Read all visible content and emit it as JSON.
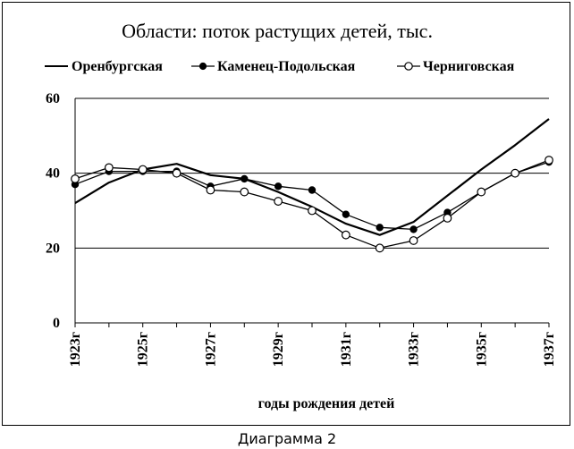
{
  "chart_data": {
    "type": "line",
    "title": "Области: поток растущих детей, тыс.",
    "xlabel": "годы рождения детей",
    "ylabel": "",
    "ylim": [
      0,
      60
    ],
    "yticks": [
      0,
      20,
      40,
      60
    ],
    "x": [
      1923,
      1924,
      1925,
      1926,
      1927,
      1928,
      1929,
      1930,
      1931,
      1932,
      1933,
      1934,
      1935,
      1936,
      1937
    ],
    "tick_labels": [
      {
        "x": 1923,
        "label": "1923г"
      },
      {
        "x": 1925,
        "label": "1925г"
      },
      {
        "x": 1927,
        "label": "1927г"
      },
      {
        "x": 1929,
        "label": "1929г"
      },
      {
        "x": 1931,
        "label": "1931г"
      },
      {
        "x": 1933,
        "label": "1933г"
      },
      {
        "x": 1935,
        "label": "1935г"
      },
      {
        "x": 1937,
        "label": "1937г"
      }
    ],
    "grid": "horizontal",
    "legend_position": "top",
    "series": [
      {
        "name": "Оренбургская",
        "marker": "none",
        "color": "#000000",
        "values": [
          32,
          37.5,
          41,
          42.5,
          39.5,
          38.5,
          35,
          31,
          26.5,
          23.5,
          27,
          34,
          41,
          47.5,
          54.5
        ]
      },
      {
        "name": "Каменец-Подольская",
        "marker": "filled",
        "color": "#000000",
        "values": [
          37,
          40.5,
          40.5,
          40.5,
          36.5,
          38.5,
          36.5,
          35.5,
          29,
          25.5,
          25,
          29.5,
          35,
          40,
          43
        ]
      },
      {
        "name": "Черниговская",
        "marker": "open",
        "color": "#000000",
        "values": [
          38.5,
          41.5,
          41,
          40,
          35.5,
          35,
          32.5,
          30,
          23.5,
          20,
          22,
          28,
          35,
          40,
          43.5
        ]
      }
    ]
  },
  "caption": "Диаграмма 2"
}
